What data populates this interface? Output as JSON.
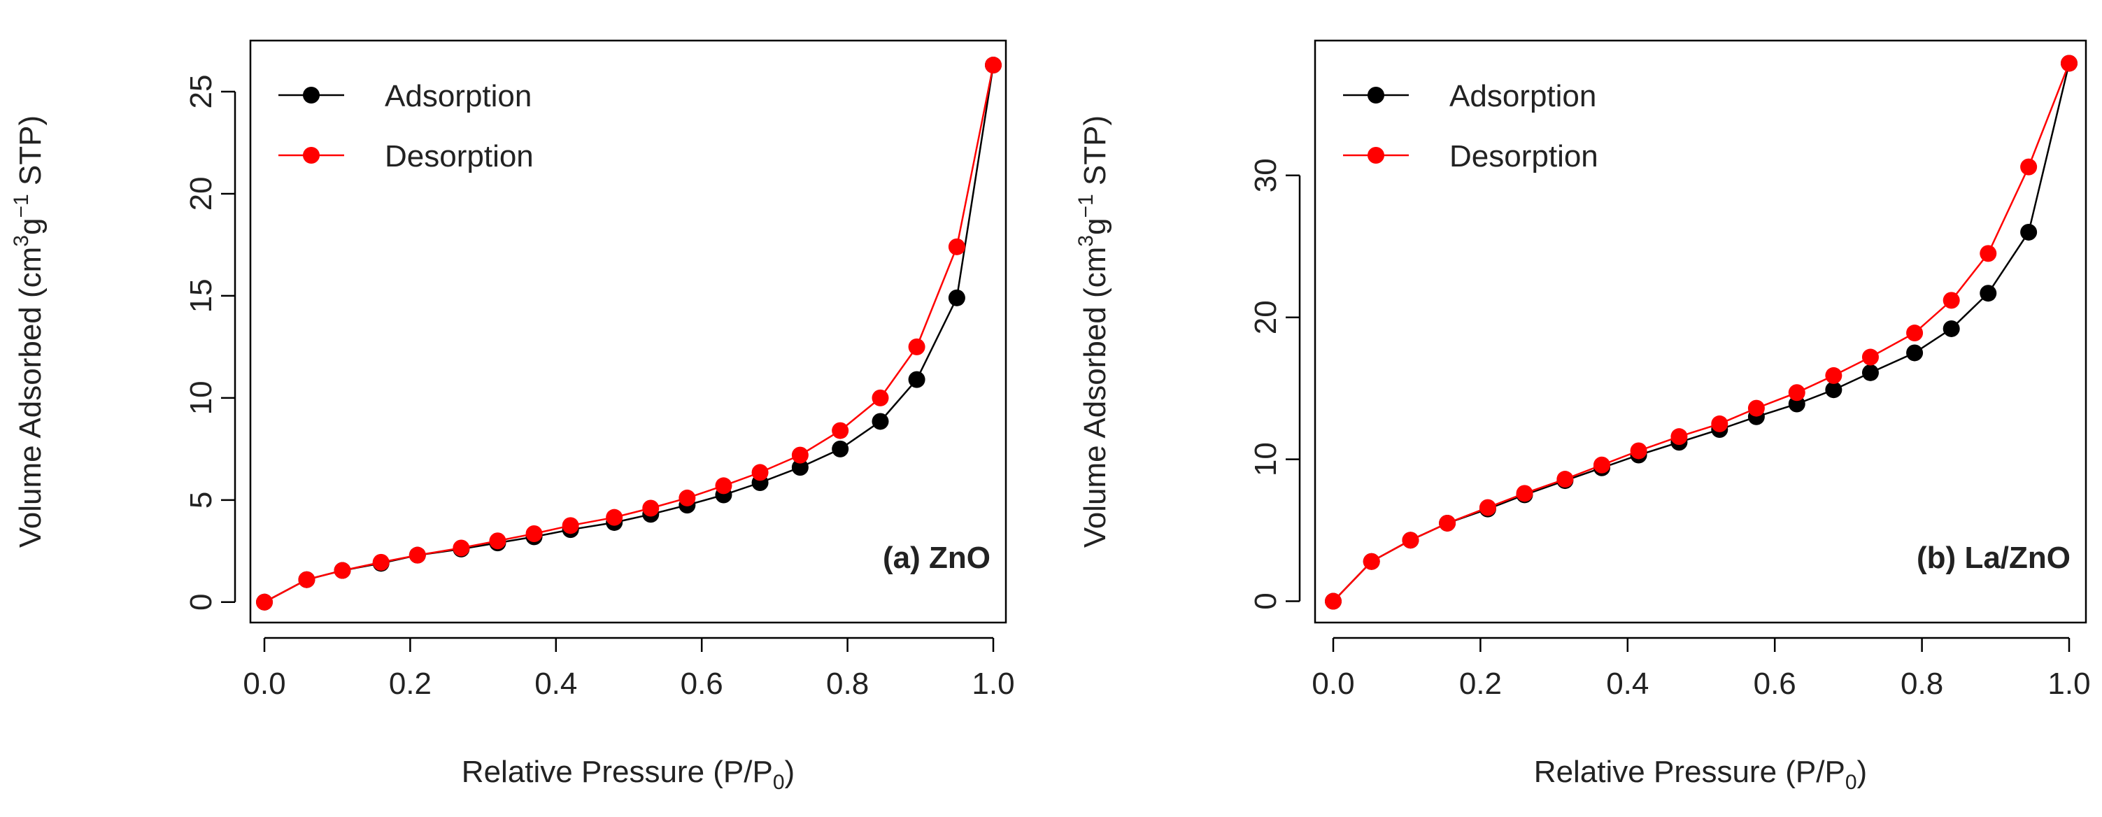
{
  "chart_data": [
    {
      "type": "line",
      "panel_label": "(a) ZnO",
      "xlabel": "Relative Pressure (P/P",
      "xlabel_sub": "0",
      "xlabel_close": ")",
      "ylabel": "Volume Adsorbed (cm",
      "ylabel_sup1": "3",
      "ylabel_mid": "g",
      "ylabel_sup2": "−1",
      "ylabel_end": " STP)",
      "xlim": [
        0,
        1
      ],
      "ylim": [
        -1,
        27.5
      ],
      "xticks": [
        0,
        0.2,
        0.4,
        0.6,
        0.8,
        1.0
      ],
      "xtick_labels": [
        "0.0",
        "0.2",
        "0.4",
        "0.6",
        "0.8",
        "1.0"
      ],
      "yticks": [
        0,
        5,
        10,
        15,
        20,
        25
      ],
      "ytick_labels": [
        "0",
        "5",
        "10",
        "15",
        "20",
        "25"
      ],
      "legend_position": "top-left",
      "series": [
        {
          "name": "Adsorption",
          "color": "#000000",
          "x": [
            0.0,
            0.058,
            0.107,
            0.16,
            0.21,
            0.27,
            0.32,
            0.37,
            0.42,
            0.48,
            0.53,
            0.58,
            0.63,
            0.68,
            0.735,
            0.79,
            0.845,
            0.895,
            0.95,
            1.0
          ],
          "y": [
            0.0,
            1.1,
            1.55,
            1.9,
            2.3,
            2.6,
            2.9,
            3.2,
            3.55,
            3.9,
            4.3,
            4.75,
            5.25,
            5.85,
            6.6,
            7.5,
            8.85,
            10.9,
            14.9,
            26.3
          ]
        },
        {
          "name": "Desorption",
          "color": "#ff0000",
          "x": [
            0.0,
            0.058,
            0.107,
            0.16,
            0.21,
            0.27,
            0.32,
            0.37,
            0.42,
            0.48,
            0.53,
            0.58,
            0.63,
            0.68,
            0.735,
            0.79,
            0.845,
            0.895,
            0.95,
            1.0
          ],
          "y": [
            0.0,
            1.1,
            1.55,
            1.95,
            2.3,
            2.65,
            3.0,
            3.35,
            3.75,
            4.15,
            4.6,
            5.1,
            5.7,
            6.35,
            7.2,
            8.4,
            10.0,
            12.5,
            17.4,
            26.3
          ]
        }
      ]
    },
    {
      "type": "line",
      "panel_label": "(b) La/ZnO",
      "xlabel": "Relative Pressure (P/P",
      "xlabel_sub": "0",
      "xlabel_close": ")",
      "ylabel": "Volume Adsorbed (cm",
      "ylabel_sup1": "3",
      "ylabel_mid": "g",
      "ylabel_sup2": "−1",
      "ylabel_end": " STP)",
      "xlim": [
        0,
        1
      ],
      "ylim": [
        -1.5,
        39.5
      ],
      "xticks": [
        0,
        0.2,
        0.4,
        0.6,
        0.8,
        1.0
      ],
      "xtick_labels": [
        "0.0",
        "0.2",
        "0.4",
        "0.6",
        "0.8",
        "1.0"
      ],
      "yticks": [
        0,
        10,
        20,
        30
      ],
      "ytick_labels": [
        "0",
        "10",
        "20",
        "30"
      ],
      "legend_position": "top-left",
      "series": [
        {
          "name": "Adsorption",
          "color": "#000000",
          "x": [
            0.0,
            0.052,
            0.105,
            0.155,
            0.21,
            0.26,
            0.315,
            0.365,
            0.415,
            0.47,
            0.525,
            0.575,
            0.63,
            0.68,
            0.73,
            0.79,
            0.84,
            0.89,
            0.945,
            1.0
          ],
          "y": [
            0.0,
            2.8,
            4.3,
            5.5,
            6.5,
            7.5,
            8.5,
            9.4,
            10.3,
            11.2,
            12.1,
            13.0,
            13.9,
            14.9,
            16.1,
            17.5,
            19.2,
            21.7,
            26.0,
            37.9
          ]
        },
        {
          "name": "Desorption",
          "color": "#ff0000",
          "x": [
            0.0,
            0.052,
            0.105,
            0.155,
            0.21,
            0.26,
            0.315,
            0.365,
            0.415,
            0.47,
            0.525,
            0.575,
            0.63,
            0.68,
            0.73,
            0.79,
            0.84,
            0.89,
            0.945,
            1.0
          ],
          "y": [
            0.0,
            2.8,
            4.3,
            5.5,
            6.6,
            7.6,
            8.6,
            9.6,
            10.6,
            11.6,
            12.5,
            13.6,
            14.7,
            15.9,
            17.2,
            18.9,
            21.2,
            24.5,
            30.6,
            37.9
          ]
        }
      ]
    }
  ]
}
